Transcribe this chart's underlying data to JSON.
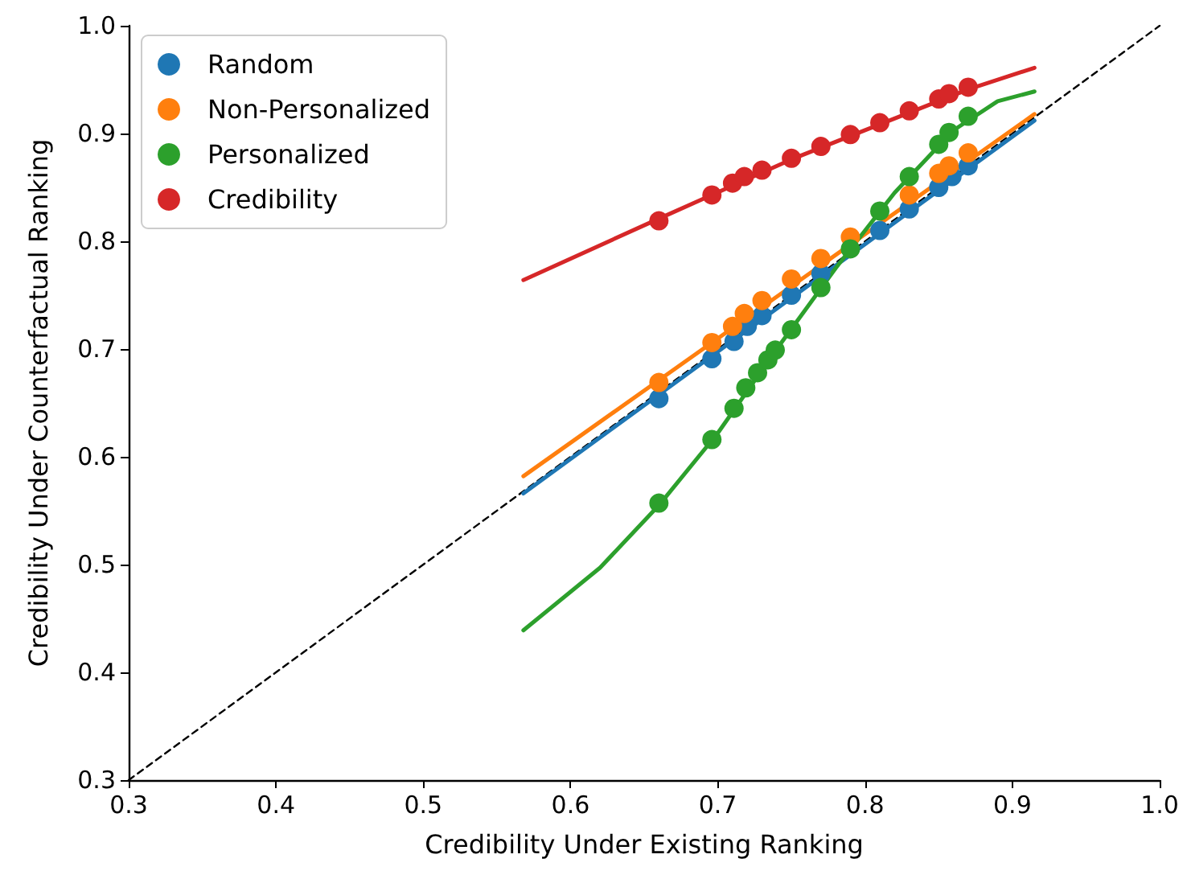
{
  "chart_data": {
    "type": "scatter",
    "xlabel": "Credibility Under Existing Ranking",
    "ylabel": "Credibility Under Counterfactual Ranking",
    "xlim": [
      0.3,
      1.0
    ],
    "ylim": [
      0.3,
      1.0
    ],
    "xticks": [
      0.3,
      0.4,
      0.5,
      0.6,
      0.7,
      0.8,
      0.9,
      {
        "value": 1.0,
        "label": "1.0"
      }
    ],
    "yticks": [
      0.3,
      0.4,
      0.5,
      0.6,
      0.7,
      0.8,
      0.9,
      {
        "value": 1.0,
        "label": "1.0"
      }
    ],
    "grid": false,
    "legend": "top left",
    "series": [
      {
        "type": "line",
        "marker": "none",
        "color": "#000000",
        "line_style": "dashed",
        "x": [
          0.3,
          1.0
        ],
        "values": [
          0.3,
          1.0
        ]
      },
      {
        "type": "line",
        "marker": "none",
        "color": "#1f77b4",
        "line_style": "solid",
        "x": [
          0.568,
          0.915
        ],
        "values": [
          0.566,
          0.912
        ]
      },
      {
        "type": "line",
        "marker": "none",
        "color": "#ff7f0e",
        "line_style": "solid",
        "x": [
          0.568,
          0.915
        ],
        "values": [
          0.582,
          0.918
        ]
      },
      {
        "type": "line",
        "marker": "none",
        "color": "#2ca02c",
        "line_style": "solid",
        "x": [
          0.568,
          0.62,
          0.66,
          0.7,
          0.74,
          0.78,
          0.82,
          0.86,
          0.89,
          0.915
        ],
        "values": [
          0.439,
          0.497,
          0.555,
          0.622,
          0.7,
          0.775,
          0.845,
          0.903,
          0.93,
          0.939
        ]
      },
      {
        "type": "line",
        "marker": "none",
        "color": "#d62728",
        "line_style": "solid",
        "x": [
          0.568,
          0.66,
          0.75,
          0.87,
          0.915
        ],
        "values": [
          0.764,
          0.821,
          0.876,
          0.941,
          0.961
        ]
      },
      {
        "name": "Random",
        "marker": "circle",
        "color": "#1f77b4",
        "x": [
          0.66,
          0.696,
          0.711,
          0.72,
          0.73,
          0.75,
          0.77,
          0.79,
          0.81,
          0.83,
          0.85,
          0.859,
          0.87
        ],
        "values": [
          0.654,
          0.691,
          0.707,
          0.721,
          0.731,
          0.75,
          0.77,
          null,
          0.81,
          0.83,
          0.85,
          0.86,
          0.87
        ]
      },
      {
        "name": "Non-Personalized",
        "marker": "circle",
        "color": "#ff7f0e",
        "x": [
          0.66,
          0.696,
          0.71,
          0.718,
          0.73,
          0.75,
          0.77,
          0.79,
          0.81,
          0.83,
          0.85,
          0.857,
          0.87
        ],
        "values": [
          0.669,
          0.706,
          0.721,
          0.733,
          0.745,
          0.765,
          0.784,
          0.804,
          null,
          0.843,
          0.863,
          0.87,
          0.882
        ]
      },
      {
        "name": "Personalized",
        "marker": "circle",
        "color": "#2ca02c",
        "x": [
          0.66,
          0.696,
          0.711,
          0.719,
          0.727,
          0.734,
          0.739,
          0.75,
          0.77,
          0.79,
          0.81,
          0.83,
          0.85,
          0.857,
          0.87
        ],
        "values": [
          0.557,
          0.616,
          0.645,
          0.664,
          0.678,
          0.69,
          0.699,
          0.718,
          0.757,
          0.793,
          0.828,
          0.86,
          0.89,
          0.901,
          0.916
        ]
      },
      {
        "name": "Credibility",
        "marker": "circle",
        "color": "#d62728",
        "x": [
          0.66,
          0.696,
          0.71,
          0.718,
          0.73,
          0.75,
          0.77,
          0.79,
          0.81,
          0.83,
          0.85,
          0.857,
          0.87
        ],
        "values": [
          0.819,
          0.843,
          0.854,
          0.86,
          0.866,
          0.877,
          0.888,
          0.899,
          0.91,
          0.921,
          0.932,
          0.937,
          0.943
        ]
      }
    ]
  }
}
